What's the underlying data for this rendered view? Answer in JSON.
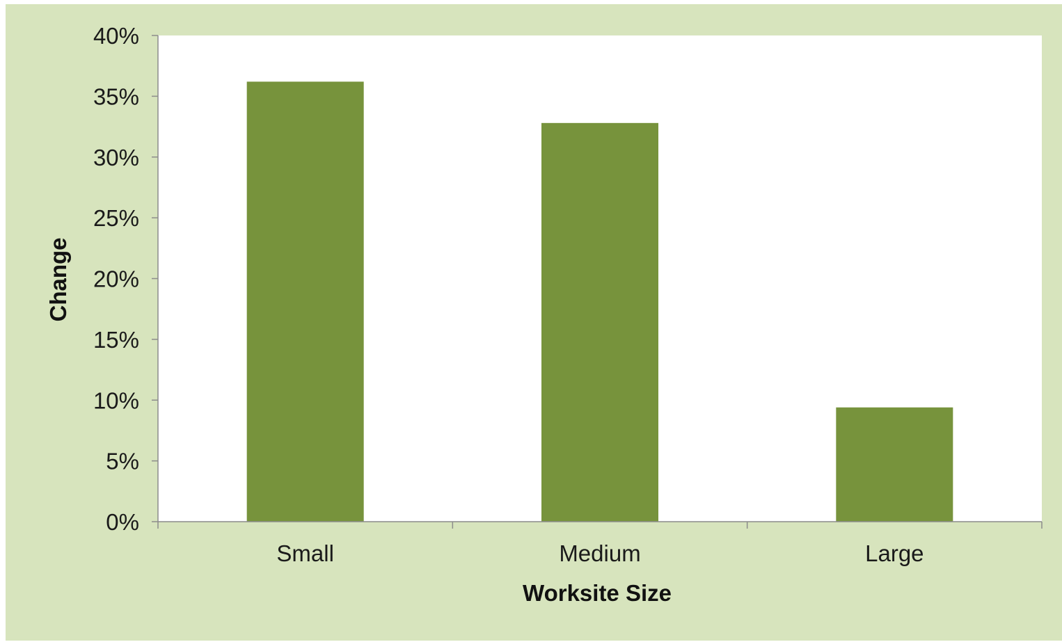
{
  "chart_data": {
    "type": "bar",
    "title": "",
    "xlabel": "Worksite  Size",
    "ylabel": "Change",
    "categories": [
      "Small",
      "Medium",
      "Large"
    ],
    "values": [
      36.2,
      32.8,
      9.4
    ],
    "value_format": "percent",
    "ylim": [
      0,
      40
    ],
    "y_ticks": [
      0,
      5,
      10,
      15,
      20,
      25,
      30,
      35,
      40
    ],
    "y_tick_labels": [
      "0%",
      "5%",
      "10%",
      "15%",
      "20%",
      "25%",
      "30%",
      "35%",
      "40%"
    ],
    "grid": false,
    "legend": "none",
    "colors": {
      "bar": "#77933c",
      "plot_background": "#ffffff",
      "chart_background": "#d7e4bd",
      "axis": "#8c8c8c"
    }
  }
}
